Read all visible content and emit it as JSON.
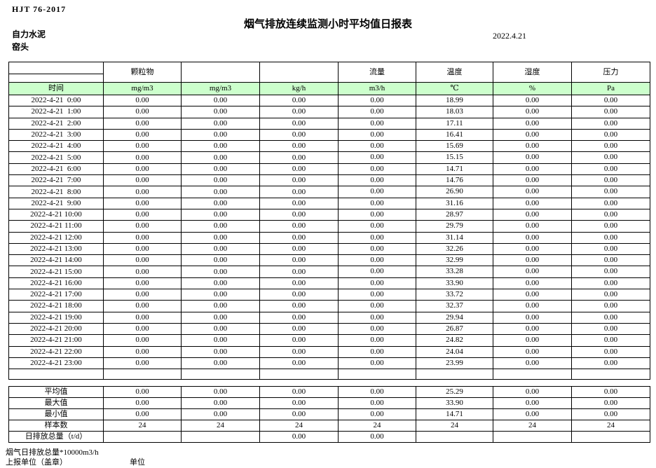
{
  "page": {
    "standard": "HJT 76-2017",
    "title": "烟气排放连续监测小时平均值日报表",
    "company": "自力水泥",
    "station": "窑头",
    "date": "2022.4.21"
  },
  "colors": {
    "header_green": "#ccffcc",
    "border": "#000000"
  },
  "table": {
    "group_headers": [
      "",
      "颗粒物",
      "",
      "",
      "流量",
      "温度",
      "湿度",
      "压力"
    ],
    "unit_headers": [
      "时间",
      "mg/m3",
      "mg/m3",
      "kg/h",
      "m3/h",
      "℃",
      "%",
      "Pa"
    ],
    "rows": [
      {
        "label": "2022-4-21  0:00",
        "values": [
          "0.00",
          "0.00",
          "0.00",
          "0.00",
          "18.99",
          "0.00",
          "0.00"
        ]
      },
      {
        "label": "2022-4-21  1:00",
        "values": [
          "0.00",
          "0.00",
          "0.00",
          "0.00",
          "18.03",
          "0.00",
          "0.00"
        ]
      },
      {
        "label": "2022-4-21  2:00",
        "values": [
          "0.00",
          "0.00",
          "0.00",
          "0.00",
          "17.11",
          "0.00",
          "0.00"
        ]
      },
      {
        "label": "2022-4-21  3:00",
        "values": [
          "0.00",
          "0.00",
          "0.00",
          "0.00",
          "16.41",
          "0.00",
          "0.00"
        ]
      },
      {
        "label": "2022-4-21  4:00",
        "values": [
          "0.00",
          "0.00",
          "0.00",
          "0.00",
          "15.69",
          "0.00",
          "0.00"
        ]
      },
      {
        "label": "2022-4-21  5:00",
        "values": [
          "0.00",
          "0.00",
          "0.00",
          "0.00",
          "15.15",
          "0.00",
          "0.00"
        ]
      },
      {
        "label": "2022-4-21  6:00",
        "values": [
          "0.00",
          "0.00",
          "0.00",
          "0.00",
          "14.71",
          "0.00",
          "0.00"
        ]
      },
      {
        "label": "2022-4-21  7:00",
        "values": [
          "0.00",
          "0.00",
          "0.00",
          "0.00",
          "14.76",
          "0.00",
          "0.00"
        ]
      },
      {
        "label": "2022-4-21  8:00",
        "values": [
          "0.00",
          "0.00",
          "0.00",
          "0.00",
          "26.90",
          "0.00",
          "0.00"
        ]
      },
      {
        "label": "2022-4-21  9:00",
        "values": [
          "0.00",
          "0.00",
          "0.00",
          "0.00",
          "31.16",
          "0.00",
          "0.00"
        ]
      },
      {
        "label": "2022-4-21 10:00",
        "values": [
          "0.00",
          "0.00",
          "0.00",
          "0.00",
          "28.97",
          "0.00",
          "0.00"
        ]
      },
      {
        "label": "2022-4-21 11:00",
        "values": [
          "0.00",
          "0.00",
          "0.00",
          "0.00",
          "29.79",
          "0.00",
          "0.00"
        ]
      },
      {
        "label": "2022-4-21 12:00",
        "values": [
          "0.00",
          "0.00",
          "0.00",
          "0.00",
          "31.14",
          "0.00",
          "0.00"
        ]
      },
      {
        "label": "2022-4-21 13:00",
        "values": [
          "0.00",
          "0.00",
          "0.00",
          "0.00",
          "32.26",
          "0.00",
          "0.00"
        ]
      },
      {
        "label": "2022-4-21 14:00",
        "values": [
          "0.00",
          "0.00",
          "0.00",
          "0.00",
          "32.99",
          "0.00",
          "0.00"
        ]
      },
      {
        "label": "2022-4-21 15:00",
        "values": [
          "0.00",
          "0.00",
          "0.00",
          "0.00",
          "33.28",
          "0.00",
          "0.00"
        ]
      },
      {
        "label": "2022-4-21 16:00",
        "values": [
          "0.00",
          "0.00",
          "0.00",
          "0.00",
          "33.90",
          "0.00",
          "0.00"
        ]
      },
      {
        "label": "2022-4-21 17:00",
        "values": [
          "0.00",
          "0.00",
          "0.00",
          "0.00",
          "33.72",
          "0.00",
          "0.00"
        ]
      },
      {
        "label": "2022-4-21 18:00",
        "values": [
          "0.00",
          "0.00",
          "0.00",
          "0.00",
          "32.37",
          "0.00",
          "0.00"
        ]
      },
      {
        "label": "2022-4-21 19:00",
        "values": [
          "0.00",
          "0.00",
          "0.00",
          "0.00",
          "29.94",
          "0.00",
          "0.00"
        ]
      },
      {
        "label": "2022-4-21 20:00",
        "values": [
          "0.00",
          "0.00",
          "0.00",
          "0.00",
          "26.87",
          "0.00",
          "0.00"
        ]
      },
      {
        "label": "2022-4-21 21:00",
        "values": [
          "0.00",
          "0.00",
          "0.00",
          "0.00",
          "24.82",
          "0.00",
          "0.00"
        ]
      },
      {
        "label": "2022-4-21 22:00",
        "values": [
          "0.00",
          "0.00",
          "0.00",
          "0.00",
          "24.04",
          "0.00",
          "0.00"
        ]
      },
      {
        "label": "2022-4-21 23:00",
        "values": [
          "0.00",
          "0.00",
          "0.00",
          "0.00",
          "23.99",
          "0.00",
          "0.00"
        ]
      }
    ],
    "summary_rows": [
      {
        "label": "平均值",
        "values": [
          "0.00",
          "0.00",
          "0.00",
          "0.00",
          "25.29",
          "0.00",
          "0.00"
        ]
      },
      {
        "label": "最大值",
        "values": [
          "0.00",
          "0.00",
          "0.00",
          "0.00",
          "33.90",
          "0.00",
          "0.00"
        ]
      },
      {
        "label": "最小值",
        "values": [
          "0.00",
          "0.00",
          "0.00",
          "0.00",
          "14.71",
          "0.00",
          "0.00"
        ]
      },
      {
        "label": "样本数",
        "values": [
          "24",
          "24",
          "24",
          "24",
          "24",
          "24",
          "24"
        ]
      },
      {
        "label": "日排放总量（t/d）",
        "values": [
          "",
          "",
          "0.00",
          "0.00",
          "",
          "",
          ""
        ]
      }
    ]
  },
  "footer": {
    "note": "烟气日排放总量*10000m3/h",
    "report_unit": "上报单位（盖章）",
    "unit_label": "单位"
  }
}
